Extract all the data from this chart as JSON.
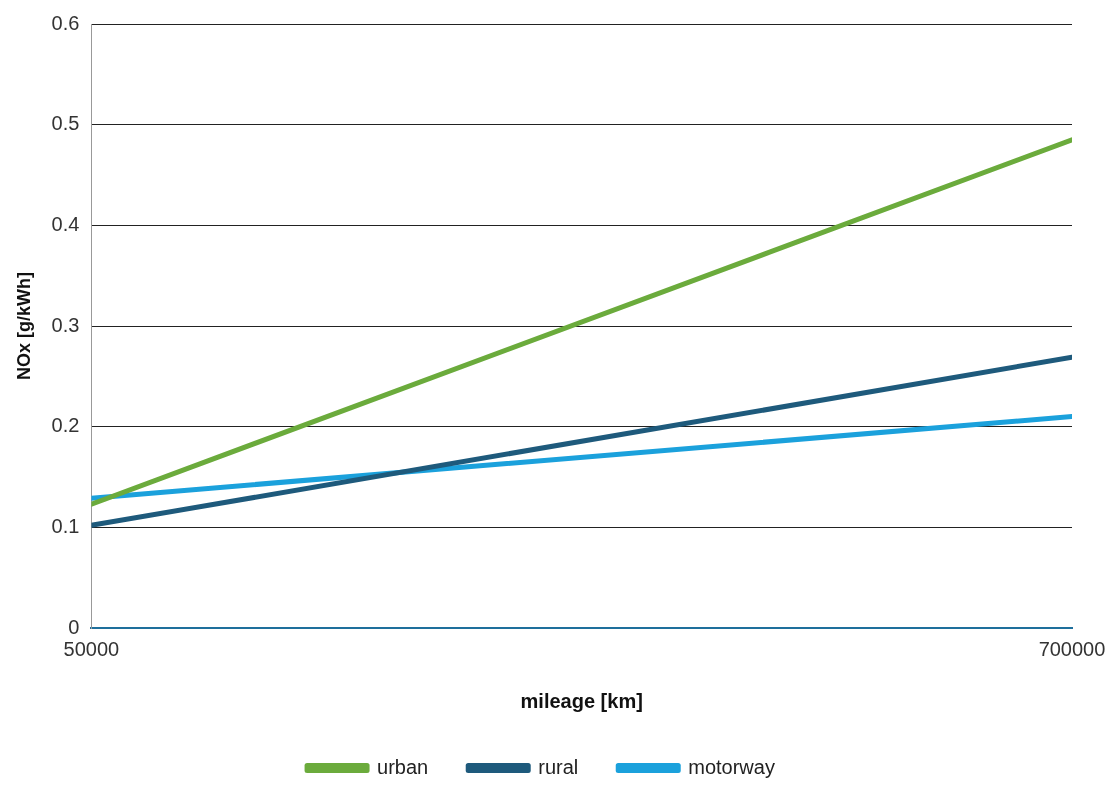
{
  "chart_data": {
    "type": "line",
    "xlabel": "mileage [km]",
    "ylabel": "NOx [g/kWh]",
    "x": [
      50000,
      700000
    ],
    "series": [
      {
        "name": "urban",
        "color": "#6bab3c",
        "values": [
          0.123,
          0.485
        ]
      },
      {
        "name": "rural",
        "color": "#1e5a7c",
        "values": [
          0.102,
          0.269
        ]
      },
      {
        "name": "motorway",
        "color": "#1ba1dc",
        "values": [
          0.129,
          0.21
        ]
      }
    ],
    "xlim": [
      50000,
      700000
    ],
    "xticks": [
      50000,
      700000
    ],
    "ylim": [
      0,
      0.6
    ],
    "yticks": [
      0,
      0.1,
      0.2,
      0.3,
      0.4,
      0.5,
      0.6
    ],
    "grid": "y",
    "legend": "bottom",
    "marker": "none",
    "line_style": "solid"
  }
}
